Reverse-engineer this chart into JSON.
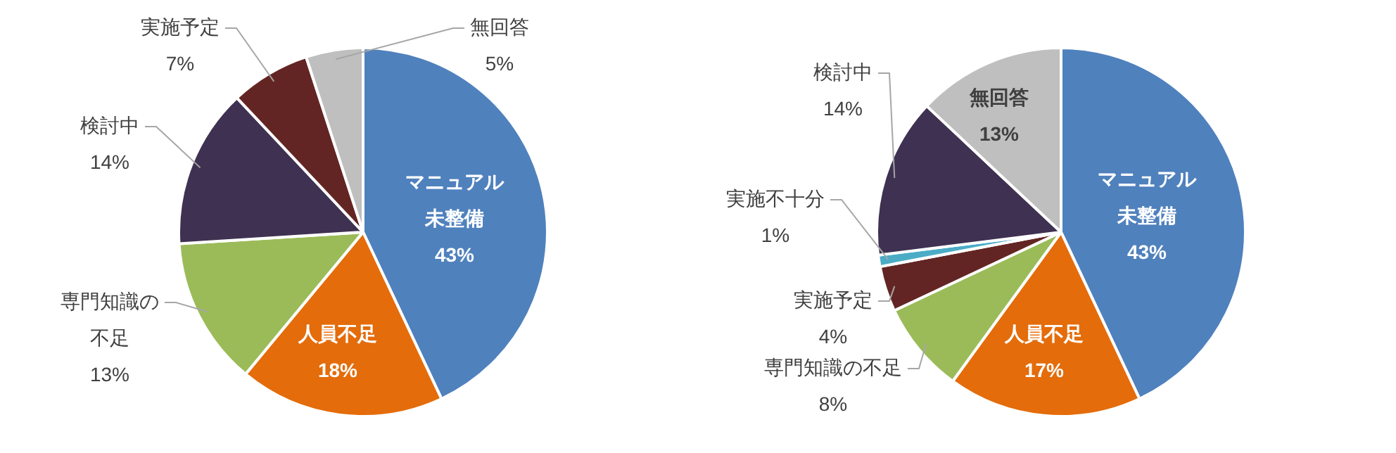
{
  "chart_data": [
    {
      "type": "pie",
      "categories": [
        "マニュアル未整備",
        "人員不足",
        "専門知識の不足",
        "検討中",
        "実施予定",
        "無回答"
      ],
      "values": [
        43,
        18,
        13,
        14,
        7,
        5
      ],
      "colors": [
        "#4f81bd",
        "#e46c0a",
        "#9bbb59",
        "#3f3151",
        "#632523",
        "#bfbfbf"
      ],
      "value_labels": [
        "43%",
        "18%",
        "13%",
        "14%",
        "7%",
        "5%"
      ]
    },
    {
      "type": "pie",
      "categories": [
        "マニュアル未整備",
        "人員不足",
        "専門知識の不足",
        "実施予定",
        "実施不十分",
        "検討中",
        "無回答"
      ],
      "values": [
        43,
        17,
        8,
        4,
        1,
        14,
        13
      ],
      "colors": [
        "#4f81bd",
        "#e46c0a",
        "#9bbb59",
        "#632523",
        "#4bacc6",
        "#3f3151",
        "#bfbfbf"
      ],
      "value_labels": [
        "43%",
        "17%",
        "8%",
        "4%",
        "1%",
        "14%",
        "13%"
      ]
    }
  ]
}
